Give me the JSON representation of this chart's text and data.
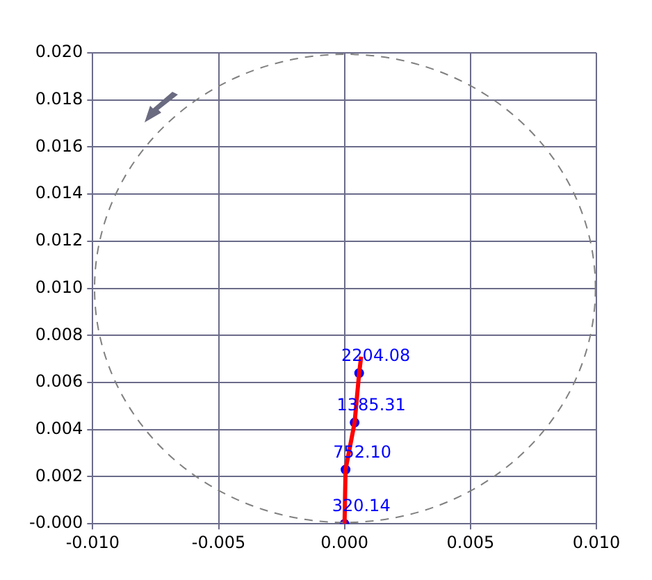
{
  "chart_data": {
    "type": "scatter",
    "xlim": [
      -0.01,
      0.01
    ],
    "xticks": [
      {
        "value": -0.01,
        "label": "-0.010"
      },
      -0.005,
      {
        "value": 0,
        "label": "0.000"
      },
      0.005,
      {
        "value": 0.01,
        "label": "0.010"
      }
    ],
    "ylim": [
      0,
      0.02
    ],
    "yticks": [
      {
        "value": 0,
        "label": "-0.000"
      },
      0.002,
      0.004,
      0.006,
      0.008,
      {
        "value": 0.01,
        "label": "0.010"
      },
      0.012,
      0.014,
      0.016,
      0.018,
      {
        "value": 0.02,
        "label": "0.020"
      }
    ],
    "grid": true,
    "series": [
      {
        "type": "line",
        "color": "#ff0000",
        "line_style": "solid",
        "marker": "none",
        "x": [
          0,
          4e-05,
          0.0004,
          0.00058,
          0.00066
        ],
        "values": [
          0,
          0.0023,
          0.0043,
          0.0064,
          0.0071
        ]
      },
      {
        "type": "scatter",
        "color": "#0000ff",
        "marker": "circle",
        "x": [
          0,
          4e-05,
          0.0004,
          0.00058
        ],
        "values": [
          0,
          0.0023,
          0.0043,
          0.0064
        ]
      }
    ],
    "annotations": [
      {
        "text": "320.14",
        "x": 0,
        "y": 0
      },
      {
        "text": "752.10",
        "x": 4e-05,
        "y": 0.0023
      },
      {
        "text": "1385.31",
        "x": 0.0004,
        "y": 0.0043
      },
      {
        "text": "2204.08",
        "x": 0.00058,
        "y": 0.0064
      }
    ]
  }
}
